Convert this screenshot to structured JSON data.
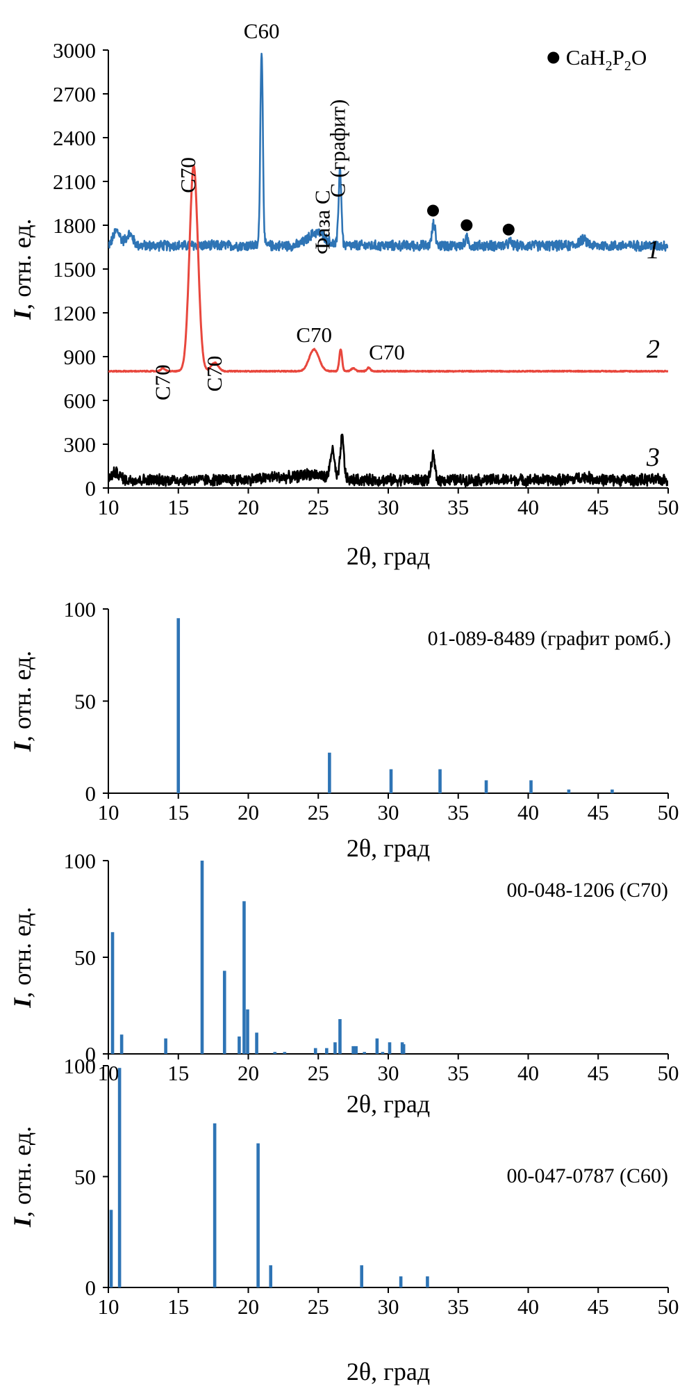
{
  "chart_data": [
    {
      "type": "line",
      "xlabel": "2θ, град",
      "ylabel_italic": "I",
      "ylabel_rest": ", отн. ед.",
      "xlim": [
        10,
        50
      ],
      "ylim": [
        0,
        3000
      ],
      "xticks": [
        10,
        15,
        20,
        25,
        30,
        35,
        40,
        45,
        50
      ],
      "yticks": [
        0,
        300,
        600,
        900,
        1200,
        1500,
        1800,
        2100,
        2400,
        2700,
        3000
      ],
      "legend": {
        "marker": "circle",
        "text": "CaH",
        "sub1": "2",
        "text2": "P",
        "sub2": "2",
        "text3": "O",
        "position": "top-right"
      },
      "series": [
        {
          "name": "1",
          "color": "#2e74b5",
          "baseline": 1660,
          "noise": 40,
          "peaks": [
            {
              "x": 10.6,
              "h": 100,
              "w": 0.25
            },
            {
              "x": 11.5,
              "h": 80,
              "w": 0.25
            },
            {
              "x": 20.95,
              "h": 1340,
              "w": 0.09
            },
            {
              "x": 24.9,
              "h": 90,
              "w": 0.6
            },
            {
              "x": 26.55,
              "h": 520,
              "w": 0.1
            },
            {
              "x": 33.25,
              "h": 150,
              "w": 0.12
            },
            {
              "x": 35.6,
              "h": 50,
              "w": 0.12
            },
            {
              "x": 38.7,
              "h": 25,
              "w": 0.12
            },
            {
              "x": 43.9,
              "h": 40,
              "w": 0.3
            }
          ]
        },
        {
          "name": "2",
          "color": "#e8473d",
          "baseline": 800,
          "noise": 4,
          "peaks": [
            {
              "x": 13.9,
              "h": 20,
              "w": 0.15
            },
            {
              "x": 16.1,
              "h": 1410,
              "w": 0.3
            },
            {
              "x": 17.6,
              "h": 60,
              "w": 0.25
            },
            {
              "x": 24.7,
              "h": 150,
              "w": 0.35
            },
            {
              "x": 26.6,
              "h": 150,
              "w": 0.1
            },
            {
              "x": 27.5,
              "h": 20,
              "w": 0.15
            },
            {
              "x": 28.6,
              "h": 25,
              "w": 0.12
            }
          ]
        },
        {
          "name": "3",
          "color": "#000000",
          "baseline": 55,
          "noise": 45,
          "peaks": [
            {
              "x": 10.5,
              "h": 50,
              "w": 0.3
            },
            {
              "x": 22,
              "h": 20,
              "w": 1.0
            },
            {
              "x": 24.5,
              "h": 40,
              "w": 0.8
            },
            {
              "x": 26.0,
              "h": 200,
              "w": 0.15
            },
            {
              "x": 26.7,
              "h": 290,
              "w": 0.13
            },
            {
              "x": 33.2,
              "h": 160,
              "w": 0.13
            },
            {
              "x": 44,
              "h": 20,
              "w": 0.5
            }
          ]
        }
      ],
      "annotations": [
        {
          "text": "C60",
          "x": 20.95,
          "y": 3080,
          "rotated": false
        },
        {
          "text": "C70",
          "x": 16.2,
          "y": 2300,
          "rotated": true
        },
        {
          "text": "Фаза C",
          "x": 25.8,
          "y": 1880,
          "rotated": true
        },
        {
          "text": "C (графит)",
          "x": 26.9,
          "y": 2270,
          "rotated": true
        },
        {
          "text": "C70",
          "x": 14.4,
          "y": 880,
          "rotated": true
        },
        {
          "text": "C70",
          "x": 18.1,
          "y": 940,
          "rotated": true
        },
        {
          "text": "C70",
          "x": 24.7,
          "y": 1000,
          "rotated": false
        },
        {
          "text": "C70",
          "x": 29.9,
          "y": 880,
          "rotated": false
        }
      ],
      "dot_markers": [
        {
          "x": 33.2,
          "y": 1900
        },
        {
          "x": 35.6,
          "y": 1800
        },
        {
          "x": 38.6,
          "y": 1770
        }
      ]
    },
    {
      "type": "bar",
      "title": "01-089-8489 (графит ромб.)",
      "xlabel": "2θ, град",
      "ylabel_italic": "I",
      "ylabel_rest": ", отн. ед.",
      "xlim": [
        10,
        50
      ],
      "ylim": [
        0,
        100
      ],
      "xticks": [
        10,
        15,
        20,
        25,
        30,
        35,
        40,
        45,
        50
      ],
      "yticks": [
        0,
        50,
        100
      ],
      "color": "#2e74b5",
      "x": [
        15.0,
        25.8,
        30.2,
        33.7,
        37.0,
        40.2,
        42.9,
        46.0
      ],
      "values": [
        95,
        22,
        13,
        13,
        7,
        7,
        2,
        2
      ]
    },
    {
      "type": "bar",
      "title": "00-048-1206 (C70)",
      "xlabel": "2θ, град",
      "ylabel_italic": "I",
      "ylabel_rest": ", отн. ед.",
      "xlim": [
        10,
        50
      ],
      "ylim": [
        0,
        100
      ],
      "xticks": [
        10,
        15,
        20,
        25,
        30,
        35,
        40,
        45,
        50
      ],
      "yticks": [
        0,
        50,
        100
      ],
      "color": "#2e74b5",
      "x": [
        10.3,
        10.95,
        14.1,
        16.7,
        18.3,
        19.35,
        19.7,
        19.95,
        20.6,
        21.9,
        22.6,
        24.8,
        25.6,
        26.2,
        26.55,
        27.5,
        27.7,
        28.3,
        29.2,
        29.6,
        30.1,
        31.0,
        31.1
      ],
      "values": [
        63,
        10,
        8,
        100,
        43,
        9,
        79,
        23,
        11,
        1,
        1,
        3,
        3,
        6,
        18,
        4,
        4,
        1,
        8,
        1,
        6,
        6,
        5
      ]
    },
    {
      "type": "bar",
      "title": "00-047-0787 (C60)",
      "xlabel": "2θ, град",
      "ylabel_italic": "I",
      "ylabel_rest": ", отн. ед.",
      "xlim": [
        10,
        50
      ],
      "ylim": [
        0,
        100
      ],
      "xticks": [
        10,
        15,
        20,
        25,
        30,
        35,
        40,
        45,
        50
      ],
      "yticks": [
        0,
        50,
        100
      ],
      "color": "#2e74b5",
      "x": [
        10.2,
        10.8,
        17.6,
        20.7,
        21.6,
        28.1,
        30.9,
        32.8
      ],
      "values": [
        35,
        99,
        74,
        65,
        10,
        10,
        5,
        5
      ]
    }
  ]
}
